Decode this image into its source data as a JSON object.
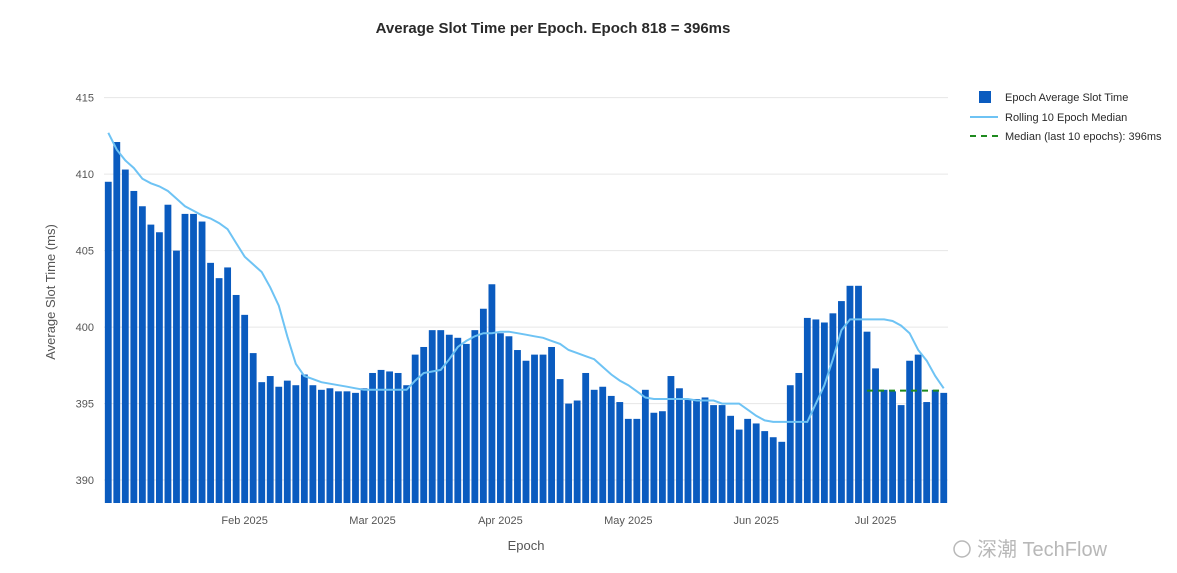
{
  "chart_data": {
    "type": "bar",
    "title": "Average Slot Time per Epoch. Epoch 818 = 396ms",
    "xlabel": "Epoch",
    "ylabel": "Average Slot Time (ms)",
    "ylim": [
      388.5,
      415.5
    ],
    "yticks": [
      390,
      395,
      400,
      405,
      410,
      415
    ],
    "x_month_ticks": [
      "Feb 2025",
      "Mar 2025",
      "Apr 2025",
      "May 2025",
      "Jun 2025",
      "Jul 2025"
    ],
    "x_month_tick_bar_index": [
      16.5,
      31.5,
      46.5,
      61.5,
      76.5,
      90.5
    ],
    "grid": "horizontal",
    "legend_placement": "top-right",
    "series": [
      {
        "name": "Epoch Average Slot Time",
        "type": "bar",
        "color": "#0a5bbf",
        "values": [
          409.5,
          412.1,
          410.3,
          408.9,
          407.9,
          406.7,
          406.2,
          408.0,
          405.0,
          407.4,
          407.4,
          406.9,
          404.2,
          403.2,
          403.9,
          402.1,
          400.8,
          398.3,
          396.4,
          396.8,
          396.1,
          396.5,
          396.2,
          396.9,
          396.2,
          395.9,
          396.0,
          395.8,
          395.8,
          395.7,
          396.0,
          397.0,
          397.2,
          397.1,
          397.0,
          396.2,
          398.2,
          398.7,
          399.8,
          399.8,
          399.5,
          399.3,
          398.9,
          399.8,
          401.2,
          402.8,
          399.6,
          399.4,
          398.5,
          397.8,
          398.2,
          398.2,
          398.7,
          396.6,
          395.0,
          395.2,
          397.0,
          395.9,
          396.1,
          395.5,
          395.1,
          394.0,
          394.0,
          395.9,
          394.4,
          394.5,
          396.8,
          396.0,
          395.3,
          395.3,
          395.4,
          394.9,
          394.9,
          394.2,
          393.3,
          394.0,
          393.7,
          393.2,
          392.8,
          392.5,
          396.2,
          397.0,
          400.6,
          400.5,
          400.3,
          400.9,
          401.7,
          402.7,
          402.7,
          399.7,
          397.3,
          395.9,
          395.8,
          394.9,
          397.8,
          398.2,
          395.1,
          395.9,
          395.7
        ]
      },
      {
        "name": "Rolling 10 Epoch Median",
        "type": "line",
        "color": "#6ec3f4",
        "values": [
          412.7,
          411.6,
          410.9,
          410.4,
          409.7,
          409.4,
          409.2,
          408.9,
          408.4,
          407.9,
          407.6,
          407.3,
          407.1,
          406.8,
          406.4,
          405.5,
          404.6,
          404.1,
          403.6,
          402.6,
          401.4,
          399.4,
          397.6,
          396.8,
          396.6,
          396.4,
          396.3,
          396.2,
          396.1,
          396.0,
          395.9,
          395.9,
          395.9,
          395.9,
          395.9,
          395.9,
          396.5,
          397.0,
          397.1,
          397.2,
          397.9,
          398.7,
          399.1,
          399.4,
          399.6,
          399.6,
          399.7,
          399.7,
          399.6,
          399.5,
          399.4,
          399.3,
          399.1,
          398.9,
          398.5,
          398.3,
          398.1,
          397.9,
          397.4,
          396.9,
          396.5,
          396.2,
          395.8,
          395.4,
          395.3,
          395.3,
          395.3,
          395.3,
          395.3,
          395.2,
          395.2,
          395.2,
          395.0,
          395.0,
          395.0,
          394.6,
          394.2,
          393.9,
          393.8,
          393.8,
          393.8,
          393.8,
          393.8,
          395.0,
          396.2,
          397.9,
          399.8,
          400.5,
          400.5,
          400.5,
          400.5,
          400.5,
          400.4,
          400.1,
          399.6,
          398.5,
          397.8,
          396.8,
          396.0
        ]
      },
      {
        "name": "Median (last 10 epochs): 396ms",
        "type": "dashed-line",
        "color": "#1f8a1f",
        "value": 395.85,
        "from_bar_index": 89,
        "to_bar_index": 98
      }
    ]
  },
  "watermark": {
    "text": "深潮 TechFlow"
  }
}
